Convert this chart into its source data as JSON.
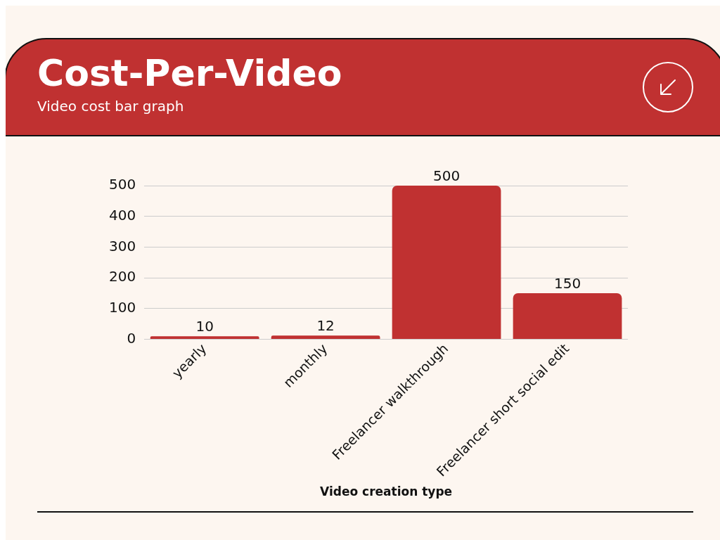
{
  "chart_data": {
    "type": "bar",
    "title": "Cost-Per-Video",
    "subtitle": "Video cost bar graph",
    "xlabel": "Video creation type",
    "categories": [
      "yearly",
      "monthly",
      "Freelancer walkthrough",
      "Freelancer short social edit"
    ],
    "values": [
      10,
      12,
      500,
      150
    ],
    "color": "#c03131",
    "ylim": [
      0,
      500
    ],
    "yticks": [
      0,
      100,
      200,
      300,
      400,
      500
    ],
    "grid": "y",
    "legend": false,
    "data_labels": true
  }
}
